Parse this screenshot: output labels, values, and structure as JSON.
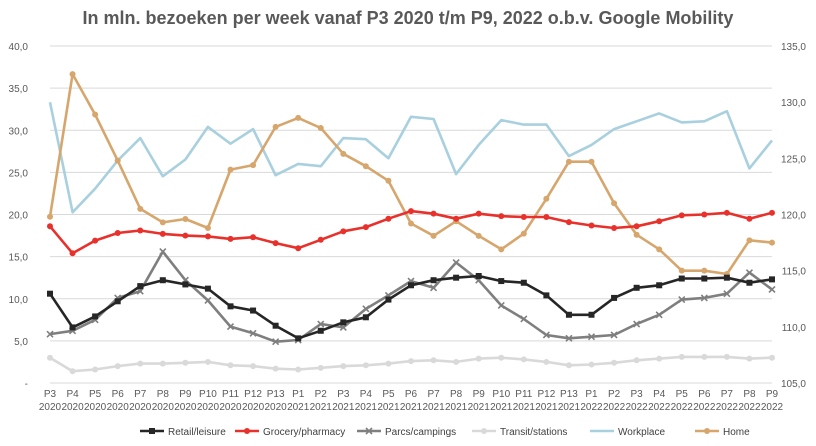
{
  "chart_data": {
    "type": "line",
    "title": "In mln. bezoeken per week vanaf P3 2020 t/m  P9, 2022 o.b.v. Google Mobility",
    "categories": [
      [
        "P3",
        "2020"
      ],
      [
        "P4",
        "2020"
      ],
      [
        "P5",
        "2020"
      ],
      [
        "P6",
        "2020"
      ],
      [
        "P7",
        "2020"
      ],
      [
        "P8",
        "2020"
      ],
      [
        "P9",
        "2020"
      ],
      [
        "P10",
        "2020"
      ],
      [
        "P11",
        "2020"
      ],
      [
        "P12",
        "2020"
      ],
      [
        "P13",
        "2020"
      ],
      [
        "P1",
        "2021"
      ],
      [
        "P2",
        "2021"
      ],
      [
        "P3",
        "2021"
      ],
      [
        "P4",
        "2021"
      ],
      [
        "P5",
        "2021"
      ],
      [
        "P6",
        "2021"
      ],
      [
        "P7",
        "2021"
      ],
      [
        "P8",
        "2021"
      ],
      [
        "P9",
        "2021"
      ],
      [
        "P10",
        "2021"
      ],
      [
        "P11",
        "2021"
      ],
      [
        "P12",
        "2021"
      ],
      [
        "P13",
        "2021"
      ],
      [
        "P1",
        "2022"
      ],
      [
        "P2",
        "2022"
      ],
      [
        "P3",
        "2022"
      ],
      [
        "P4",
        "2022"
      ],
      [
        "P5",
        "2022"
      ],
      [
        "P6",
        "2022"
      ],
      [
        "P7",
        "2022"
      ],
      [
        "P8",
        "2022"
      ],
      [
        "P9",
        "2022"
      ]
    ],
    "y_left": {
      "min": 0,
      "max": 40,
      "ticks": [
        "-",
        "5,0",
        "10,0",
        "15,0",
        "20,0",
        "25,0",
        "30,0",
        "35,0",
        "40,0"
      ]
    },
    "y_right": {
      "min": 105,
      "max": 135,
      "ticks": [
        "105,0",
        "110,0",
        "115,0",
        "120,0",
        "125,0",
        "130,0",
        "135,0"
      ]
    },
    "grid": "horizontal",
    "legend_position": "bottom",
    "series": [
      {
        "name": "Retail/leisure",
        "axis": "left",
        "color": "#262626",
        "marker": "square",
        "values": [
          10.6,
          6.6,
          7.9,
          9.7,
          11.5,
          12.2,
          11.7,
          11.2,
          9.1,
          8.6,
          6.8,
          5.3,
          6.2,
          7.2,
          7.8,
          9.9,
          11.6,
          12.2,
          12.5,
          12.7,
          12.1,
          11.9,
          10.4,
          8.1,
          8.1,
          10.1,
          11.3,
          11.6,
          12.4,
          12.4,
          12.5,
          11.9,
          12.3
        ]
      },
      {
        "name": "Grocery/pharmacy",
        "axis": "left",
        "color": "#e8312b",
        "marker": "circle",
        "values": [
          18.6,
          15.4,
          16.9,
          17.8,
          18.1,
          17.7,
          17.5,
          17.4,
          17.1,
          17.3,
          16.6,
          16.0,
          17.0,
          18.0,
          18.5,
          19.5,
          20.4,
          20.1,
          19.5,
          20.1,
          19.8,
          19.7,
          19.7,
          19.1,
          18.7,
          18.4,
          18.6,
          19.2,
          19.9,
          20.0,
          20.2,
          19.5,
          20.2
        ]
      },
      {
        "name": "Parcs/campings",
        "axis": "left",
        "color": "#7f7f7f",
        "marker": "cross",
        "values": [
          5.8,
          6.2,
          7.5,
          10.1,
          10.9,
          15.6,
          12.2,
          9.8,
          6.7,
          5.9,
          4.9,
          5.1,
          7.0,
          6.6,
          8.8,
          10.4,
          12.1,
          11.3,
          14.3,
          12.2,
          9.2,
          7.6,
          5.7,
          5.3,
          5.5,
          5.7,
          7.0,
          8.1,
          9.9,
          10.1,
          10.6,
          13.1,
          11.1
        ]
      },
      {
        "name": "Transit/stations",
        "axis": "left",
        "color": "#d9d9d9",
        "marker": "circle",
        "values": [
          3.0,
          1.4,
          1.6,
          2.0,
          2.3,
          2.3,
          2.4,
          2.5,
          2.1,
          2.0,
          1.7,
          1.6,
          1.8,
          2.0,
          2.1,
          2.3,
          2.6,
          2.7,
          2.5,
          2.9,
          3.0,
          2.8,
          2.5,
          2.1,
          2.2,
          2.4,
          2.7,
          2.9,
          3.1,
          3.1,
          3.1,
          2.9,
          3.0
        ]
      },
      {
        "name": "Workplace",
        "axis": "right",
        "color": "#a9d0de",
        "marker": "none",
        "values": [
          130.0,
          120.2,
          122.3,
          124.8,
          126.8,
          123.4,
          124.9,
          127.8,
          126.3,
          127.6,
          123.5,
          124.5,
          124.3,
          126.8,
          126.7,
          125.0,
          128.7,
          128.5,
          123.6,
          126.2,
          128.4,
          128.0,
          128.0,
          125.2,
          126.2,
          127.6,
          128.3,
          129.0,
          128.2,
          128.3,
          129.2,
          124.1,
          126.6
        ]
      },
      {
        "name": "Home",
        "axis": "right",
        "color": "#d6a66d",
        "marker": "circle",
        "values": [
          119.8,
          132.5,
          128.9,
          124.8,
          120.5,
          119.3,
          119.6,
          118.8,
          124.0,
          124.4,
          127.8,
          128.6,
          127.7,
          125.4,
          124.3,
          123.0,
          119.2,
          118.1,
          119.4,
          118.1,
          116.9,
          118.3,
          121.4,
          124.7,
          124.7,
          121.0,
          118.2,
          116.9,
          115.0,
          115.0,
          114.7,
          117.7,
          117.5
        ]
      }
    ]
  }
}
